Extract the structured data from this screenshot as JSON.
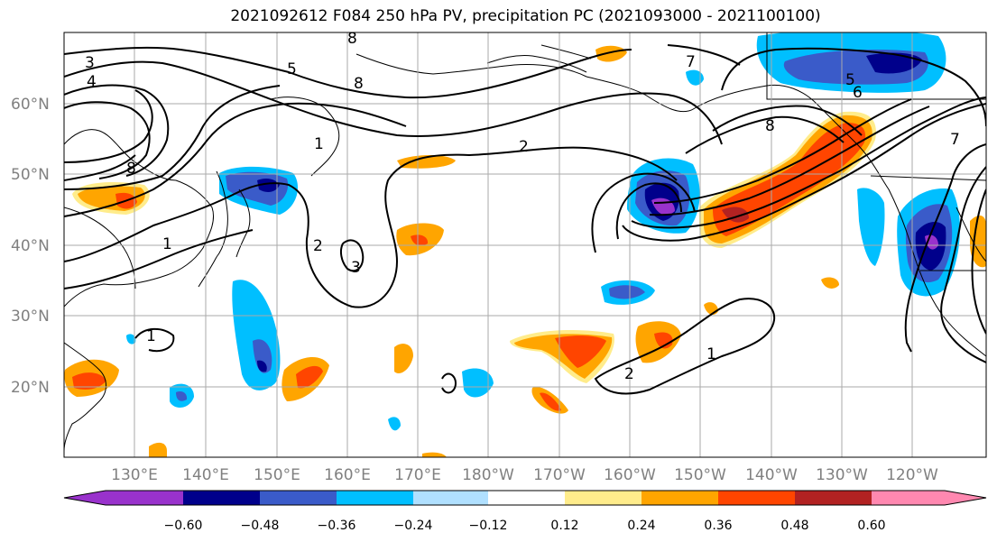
{
  "title": "2021092612 F084 250 hPa PV, precipitation PC (2021093000 - 2021100100)",
  "axes": {
    "lon_ticks": [
      "130°E",
      "140°E",
      "150°E",
      "160°E",
      "170°E",
      "180°W",
      "170°W",
      "160°W",
      "150°W",
      "140°W",
      "130°W",
      "120°W"
    ],
    "lat_ticks": [
      "60°N",
      "50°N",
      "40°N",
      "30°N",
      "20°N"
    ]
  },
  "colorbar": {
    "labels": [
      "−0.60",
      "−0.48",
      "−0.36",
      "−0.24",
      "−0.12",
      "0.12",
      "0.24",
      "0.36",
      "0.48",
      "0.60"
    ],
    "colors": [
      "#9932CC",
      "#00008B",
      "#3A5BC9",
      "#00BFFF",
      "#B0E0FF",
      "#FFFFFF",
      "#FFEC8B",
      "#FFA500",
      "#FF4500",
      "#B22222",
      "#FF88B0"
    ]
  },
  "contour_labels": [
    "1",
    "2",
    "3",
    "4",
    "5",
    "6",
    "7",
    "8"
  ]
}
